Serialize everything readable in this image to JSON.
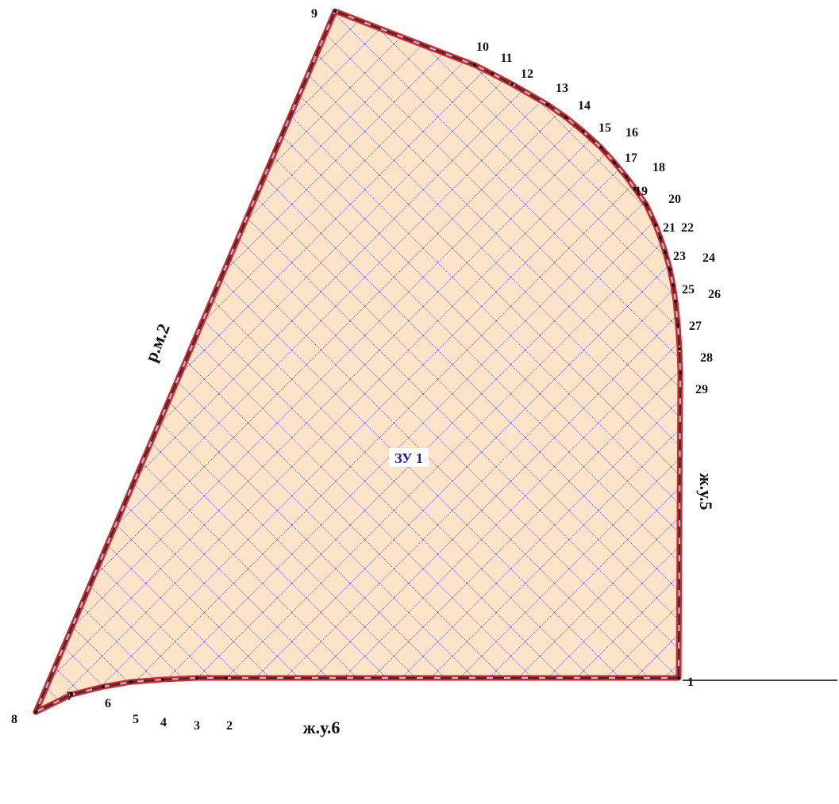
{
  "parcel": "ЗУ 1",
  "boundaries": {
    "west": "р.м.2",
    "east": "ж.у.5",
    "south": "ж.у.6"
  },
  "points": [
    "1",
    "2",
    "3",
    "4",
    "5",
    "6",
    "7",
    "8",
    "9",
    "10",
    "11",
    "12",
    "13",
    "14",
    "15",
    "16",
    "17",
    "18",
    "19",
    "20",
    "21",
    "22",
    "23",
    "24",
    "25",
    "26",
    "27",
    "28",
    "29"
  ]
}
